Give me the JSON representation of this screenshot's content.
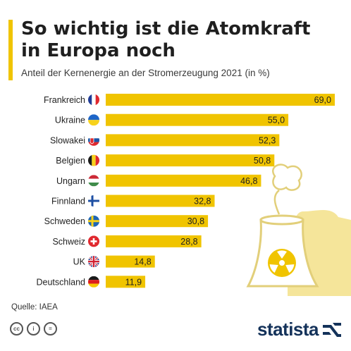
{
  "header": {
    "title": "So wichtig ist die Atomkraft in Europa noch",
    "subtitle": "Anteil der Kernenergie an der Stromerzeugung 2021 (in %)"
  },
  "footer": {
    "source": "Quelle: IAEA",
    "brand": "statista",
    "license_icons": [
      "cc-icon",
      "attribution-icon",
      "no-derivatives-icon"
    ]
  },
  "colors": {
    "bar": "#f0c400",
    "accent": "#f0c400",
    "brand": "#14325a",
    "illustration": "#f5e59a"
  },
  "chart_data": {
    "type": "bar",
    "orientation": "horizontal",
    "title": "So wichtig ist die Atomkraft in Europa noch",
    "subtitle": "Anteil der Kernenergie an der Stromerzeugung 2021 (in %)",
    "categories": [
      "Frankreich",
      "Ukraine",
      "Slowakei",
      "Belgien",
      "Ungarn",
      "Finnland",
      "Schweden",
      "Schweiz",
      "UK",
      "Deutschland"
    ],
    "values": [
      69.0,
      55.0,
      52.3,
      50.8,
      46.8,
      32.8,
      30.8,
      28.8,
      14.8,
      11.9
    ],
    "value_labels": [
      "69,0",
      "55,0",
      "52,3",
      "50,8",
      "46,8",
      "32,8",
      "30,8",
      "28,8",
      "14,8",
      "11,9"
    ],
    "flags": [
      "flag-france-icon",
      "flag-ukraine-icon",
      "flag-slovakia-icon",
      "flag-belgium-icon",
      "flag-hungary-icon",
      "flag-finland-icon",
      "flag-sweden-icon",
      "flag-switzerland-icon",
      "flag-uk-icon",
      "flag-germany-icon"
    ],
    "xlim": [
      0,
      69.0
    ],
    "grid": false,
    "legend": "none"
  }
}
